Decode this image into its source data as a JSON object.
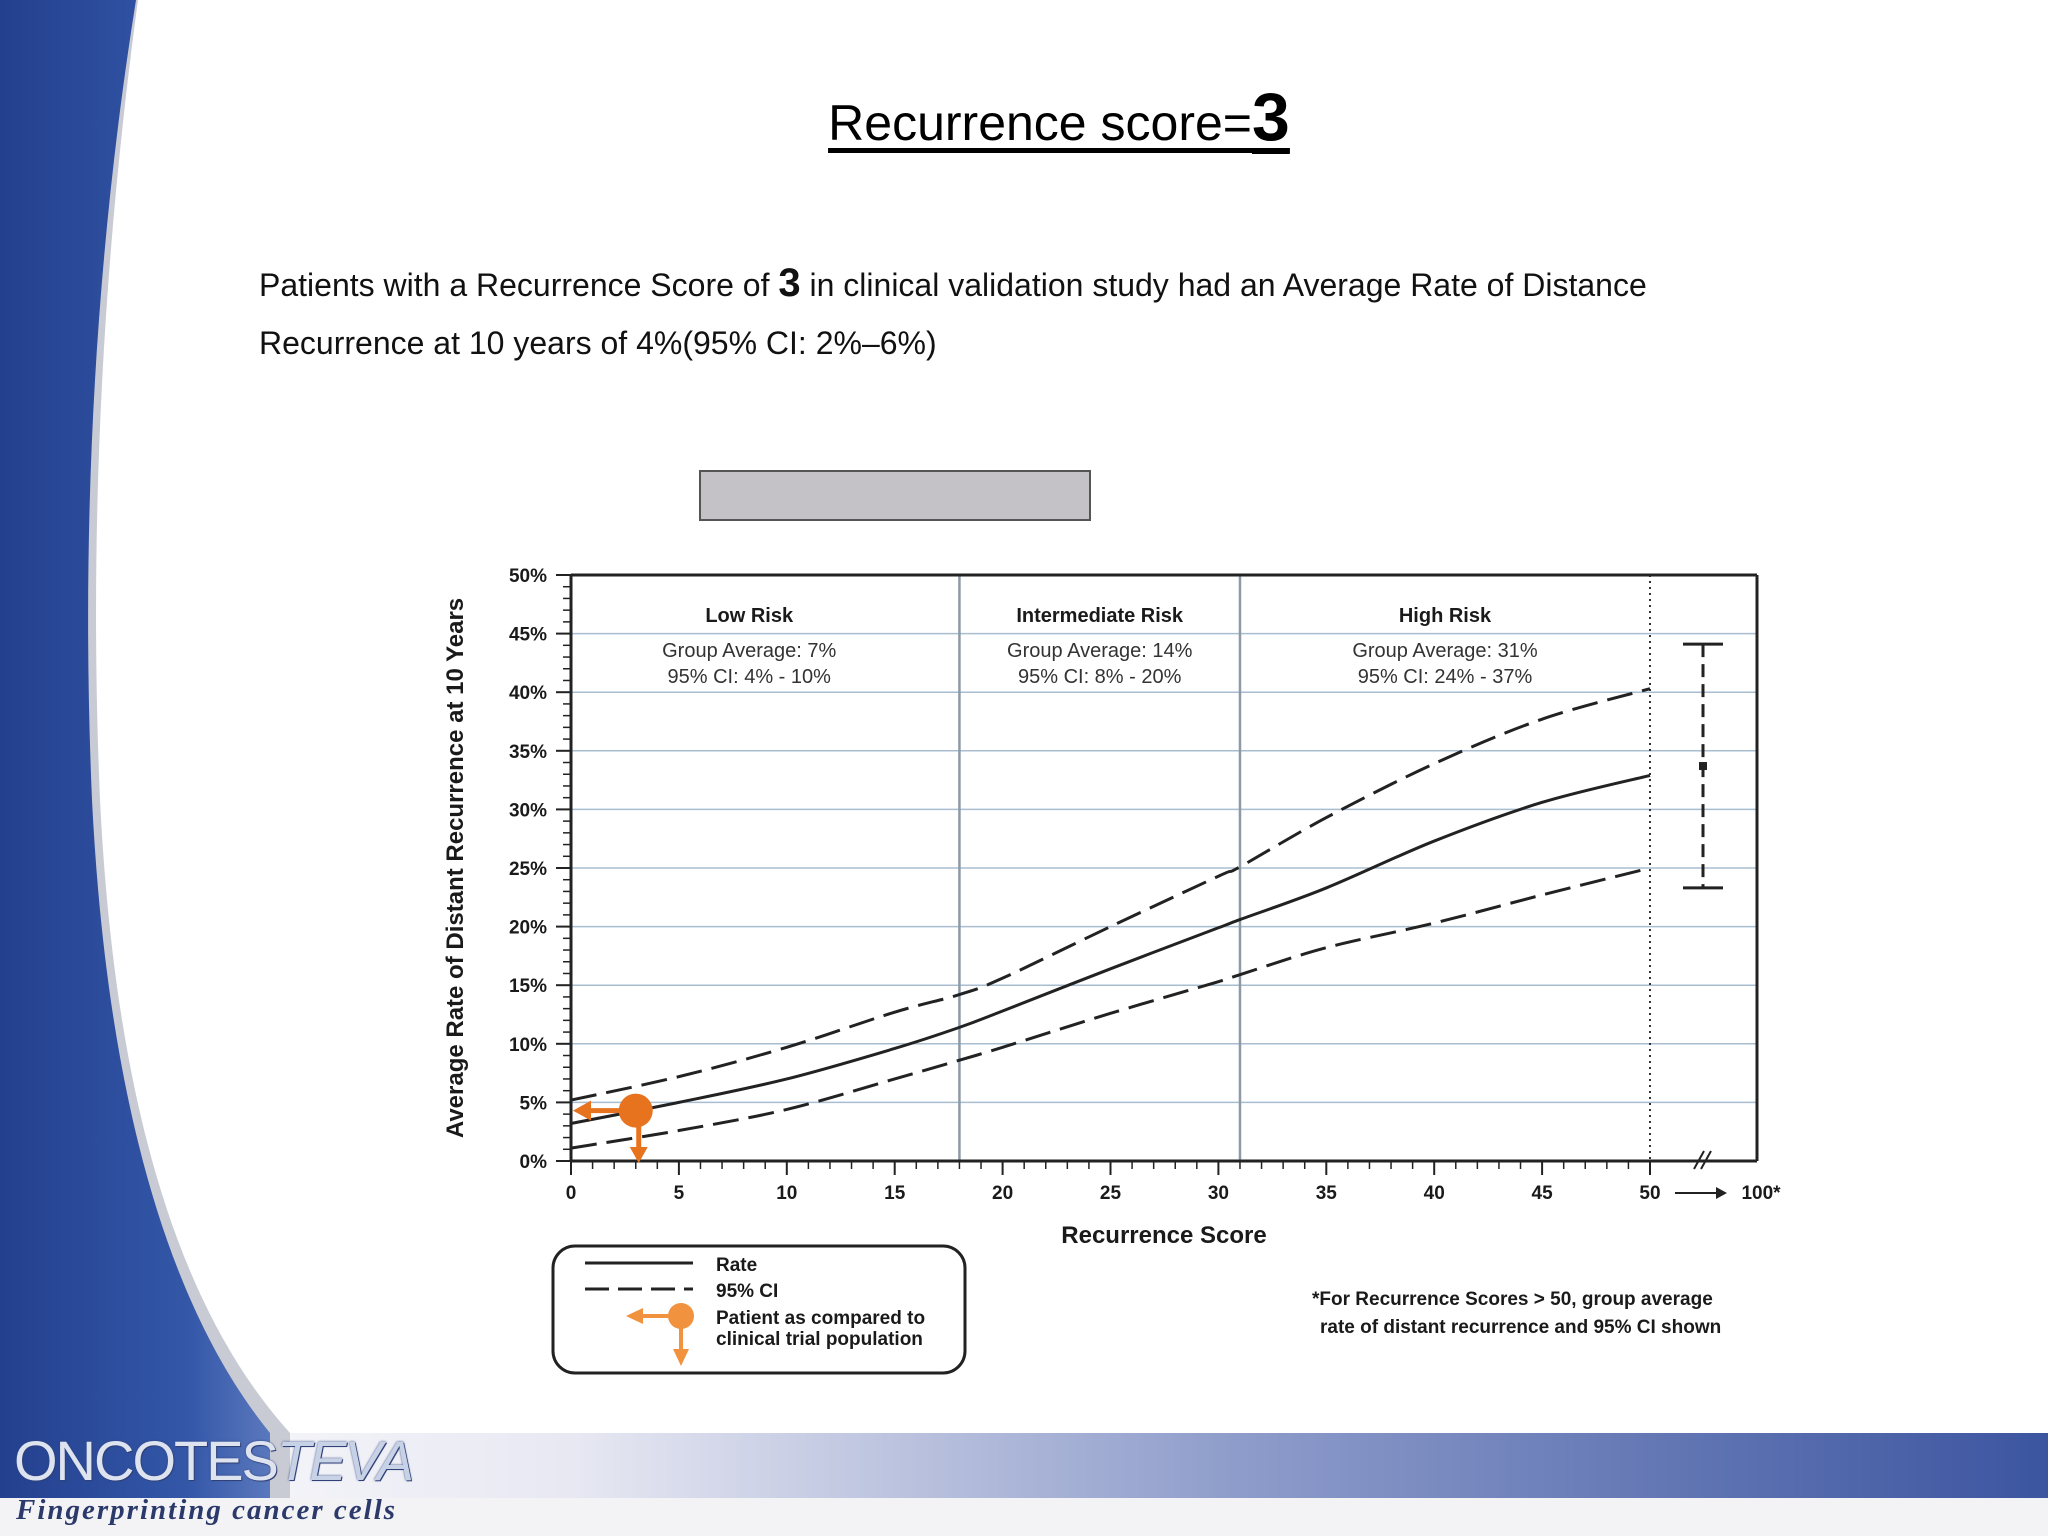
{
  "slide": {
    "title_prefix": "Recurrence score=",
    "title_score": "3",
    "desc_part1": "Patients with a Recurrence Score of ",
    "desc_score": "3",
    "desc_part2": " in clinical validation study had an Average Rate of Distance Recurrence at 10 years of  4%(95% CI: 2%–6%)",
    "logo_main": "ONCOTES",
    "logo_teva": "TEVA",
    "tagline": "Fingerprinting cancer cells"
  },
  "colors": {
    "patient_marker": "#e8731f",
    "gridline": "#a9bdd0",
    "footer_band": "#3c55a0",
    "sidebar": "#2b4a9a"
  },
  "chart_data": {
    "type": "line",
    "xlabel": "Recurrence Score",
    "ylabel": "Average Rate of Distant Recurrence at 10 Years",
    "xlim": [
      0,
      50
    ],
    "ylim": [
      0,
      50
    ],
    "x_ticks": [
      "0",
      "5",
      "10",
      "15",
      "20",
      "25",
      "30",
      "35",
      "40",
      "45",
      "50"
    ],
    "x_extra_tick": "100*",
    "y_ticks": [
      "0%",
      "5%",
      "10%",
      "15%",
      "20%",
      "25%",
      "30%",
      "35%",
      "40%",
      "45%",
      "50%"
    ],
    "grid": true,
    "boundaries": [
      18,
      31
    ],
    "regions": [
      {
        "name": "Low Risk",
        "line1": "Group Average: 7%",
        "line2": "95% CI: 4% - 10%"
      },
      {
        "name": "Intermediate Risk",
        "line1": "Group Average: 14%",
        "line2": "95% CI: 8% - 20%"
      },
      {
        "name": "High Risk",
        "line1": "Group Average: 31%",
        "line2": "95% CI: 24% - 37%"
      }
    ],
    "series": [
      {
        "name": "Rate",
        "style": "solid",
        "x": [
          0,
          5,
          10,
          15,
          18,
          20,
          25,
          30,
          31,
          35,
          40,
          45,
          50
        ],
        "y": [
          3.2,
          5.0,
          7.0,
          9.6,
          11.4,
          12.8,
          16.4,
          19.9,
          20.6,
          23.3,
          27.3,
          30.6,
          32.9
        ]
      },
      {
        "name": "95% CI",
        "style": "dashed",
        "x": [
          0,
          5,
          10,
          15,
          18,
          20,
          25,
          30,
          31,
          35,
          40,
          45,
          50
        ],
        "y": [
          5.2,
          7.2,
          9.7,
          12.7,
          14.2,
          15.6,
          20.0,
          24.3,
          25.1,
          29.3,
          33.9,
          37.7,
          40.3
        ]
      },
      {
        "name": "95% CI",
        "style": "dashed",
        "x": [
          0,
          5,
          10,
          15,
          18,
          20,
          25,
          30,
          31,
          35,
          40,
          45,
          50
        ],
        "y": [
          1.1,
          2.6,
          4.4,
          7.0,
          8.6,
          9.7,
          12.6,
          15.3,
          15.9,
          18.2,
          20.3,
          22.7,
          25.0
        ]
      }
    ],
    "patient_point": {
      "x": 3,
      "y": 4.3
    },
    "above_50": {
      "average": 33.7,
      "ci": [
        23.3,
        44.1
      ]
    },
    "legend": {
      "rate": "Rate",
      "ci": "95% CI",
      "patient_line1": "Patient as compared to",
      "patient_line2": "clinical trial population"
    },
    "footnote_line1": "*For Recurrence Scores > 50, group average",
    "footnote_line2": "rate of distant recurrence and 95% CI shown"
  }
}
